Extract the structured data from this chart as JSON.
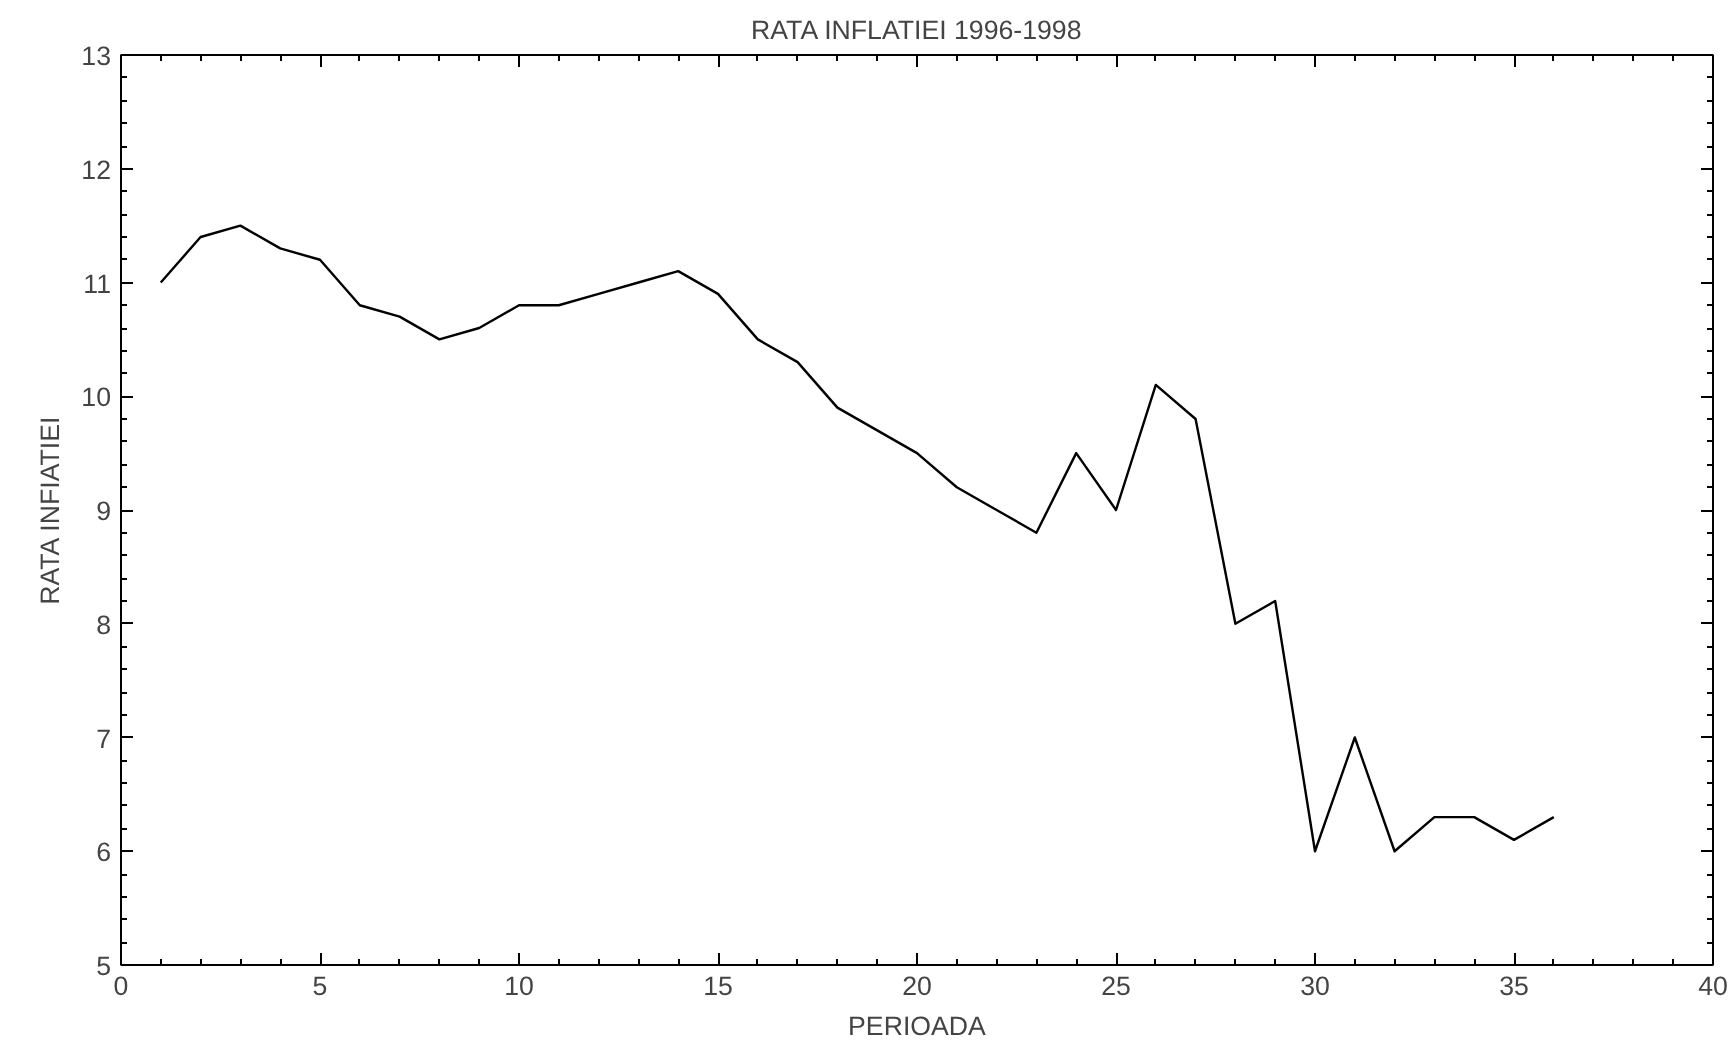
{
  "chart_data": {
    "type": "line",
    "title": "RATA INFLATIEI 1996-1998",
    "xlabel": "PERIOADA",
    "ylabel": "RATA INFIATIEI",
    "x": [
      1,
      2,
      3,
      4,
      5,
      6,
      7,
      8,
      9,
      10,
      11,
      12,
      13,
      14,
      15,
      16,
      17,
      18,
      19,
      20,
      21,
      22,
      23,
      24,
      25,
      26,
      27,
      28,
      29,
      30,
      31,
      32,
      33,
      34,
      35,
      36
    ],
    "series": [
      {
        "color": "#000000",
        "values": [
          11.0,
          11.4,
          11.5,
          11.3,
          11.2,
          10.8,
          10.7,
          10.5,
          10.6,
          10.8,
          10.8,
          10.9,
          11.0,
          11.1,
          10.9,
          10.5,
          10.3,
          9.9,
          9.7,
          9.5,
          9.2,
          9.0,
          8.8,
          9.5,
          9.0,
          10.1,
          9.8,
          8.0,
          8.2,
          6.0,
          7.0,
          6.0,
          6.3,
          6.3,
          6.1,
          6.3
        ]
      }
    ],
    "xlim": [
      0,
      40
    ],
    "ylim": [
      5,
      13
    ],
    "xticks": [
      0,
      5,
      10,
      15,
      20,
      25,
      30,
      35,
      40
    ],
    "yticks": [
      5,
      6,
      7,
      8,
      9,
      10,
      11,
      12,
      13
    ],
    "grid": false,
    "marker": "none",
    "line_style": "solid"
  }
}
